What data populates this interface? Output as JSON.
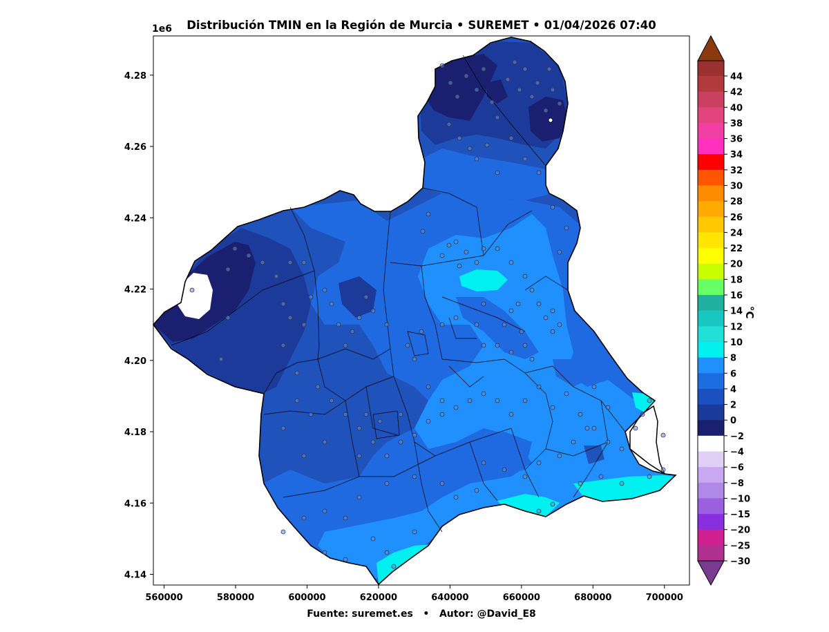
{
  "title": "Distribución TMIN en la Región de Murcia • SUREMET • 01/04/2026 07:40",
  "y_exponent": "1e6",
  "footer": "Fuente: suremet.es   •   Autor: @David_E8",
  "colorbar": {
    "unit": "°C",
    "ticks": [
      "44",
      "42",
      "40",
      "38",
      "36",
      "34",
      "32",
      "30",
      "28",
      "26",
      "24",
      "22",
      "20",
      "18",
      "16",
      "14",
      "12",
      "10",
      "8",
      "6",
      "4",
      "2",
      "0",
      "−2",
      "−4",
      "−6",
      "−8",
      "−10",
      "−15",
      "−20",
      "−25",
      "−30"
    ],
    "colors": [
      "#9a3030",
      "#b23a3c",
      "#c94060",
      "#e2447e",
      "#f23fa3",
      "#ff2fc0",
      "#ff0000",
      "#ff5500",
      "#ff8c00",
      "#ffaa00",
      "#ffc800",
      "#ffe600",
      "#ffff00",
      "#c8ff00",
      "#66ff66",
      "#20b0a0",
      "#18c8c0",
      "#20e0d8",
      "#00f0f0",
      "#2090ff",
      "#1c6ee0",
      "#1a50c0",
      "#1a3a9a",
      "#1a1f70",
      "#ffffff",
      "#e0d0f8",
      "#c8a8f0",
      "#b088e8",
      "#9a60e0",
      "#8830e0",
      "#d02090",
      "#b03090",
      "#903090",
      "#7a3a90"
    ],
    "top_cap_color": "#8b3a10",
    "bottom_cap_color": "#7a3a90"
  },
  "map": {
    "x_ticks": [
      "560000",
      "580000",
      "600000",
      "620000",
      "640000",
      "660000",
      "680000",
      "700000"
    ],
    "y_ticks": [
      "4.28",
      "4.26",
      "4.24",
      "4.22",
      "4.20",
      "4.18",
      "4.16",
      "4.14"
    ],
    "x_range": [
      557000,
      707000
    ],
    "y_range": [
      4137000,
      4291000
    ],
    "bands": [
      {
        "name": "tmin-0-2",
        "color": "#1a1f70"
      },
      {
        "name": "tmin-2-4",
        "color": "#1c3a9a"
      },
      {
        "name": "tmin-4-6",
        "color": "#1f52bb"
      },
      {
        "name": "tmin-6-8",
        "color": "#1f6ae0"
      },
      {
        "name": "tmin-8-10",
        "color": "#2090ff"
      },
      {
        "name": "tmin-10-12",
        "color": "#00f0f0"
      },
      {
        "name": "tmin-below-0",
        "color": "#ffffff"
      }
    ]
  }
}
